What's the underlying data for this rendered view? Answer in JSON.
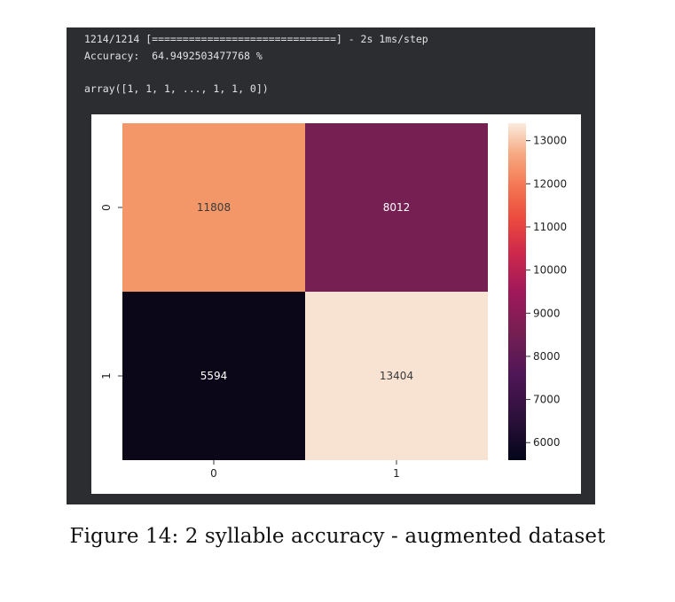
{
  "console": {
    "progress_line": "1214/1214 [==============================] - 2s 1ms/step",
    "accuracy_line": "Accuracy:  64.9492503477768 %",
    "array_line": "array([1, 1, 1, ..., 1, 1, 0])"
  },
  "chart_data": {
    "type": "heatmap",
    "x_categories": [
      "0",
      "1"
    ],
    "y_categories": [
      "0",
      "1"
    ],
    "values": [
      [
        11808,
        8012
      ],
      [
        5594,
        13404
      ]
    ],
    "cell_labels": [
      [
        "11808",
        "8012"
      ],
      [
        "5594",
        "13404"
      ]
    ],
    "colorbar": {
      "min": 5594,
      "max": 13404,
      "ticks": [
        6000,
        7000,
        8000,
        9000,
        10000,
        11000,
        12000,
        13000
      ],
      "tick_labels": [
        "6000",
        "7000",
        "8000",
        "9000",
        "10000",
        "11000",
        "12000",
        "13000"
      ]
    },
    "colormap": "rocket",
    "colors": {
      "cell_0_0": "#f39769",
      "cell_0_1": "#761f53",
      "cell_1_0": "#0c0718",
      "cell_1_1": "#f8e3d3",
      "label_light": "#ffffff",
      "label_dark": "#3a3a3a"
    },
    "title": "",
    "xlabel": "",
    "ylabel": ""
  },
  "caption": "Figure 14: 2 syllable accuracy - augmented dataset"
}
